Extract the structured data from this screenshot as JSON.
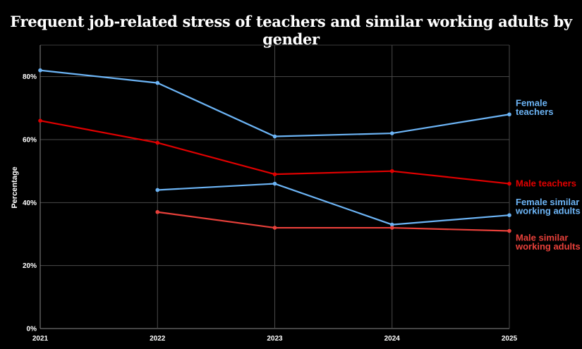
{
  "chart_data": {
    "type": "line",
    "title": "Frequent job-related stress of teachers and similar working adults by gender",
    "ylabel": "Percentage",
    "xlabel": "",
    "x": [
      2021,
      2022,
      2023,
      2024,
      2025
    ],
    "x_tick_labels": [
      "2021",
      "2022",
      "2023",
      "2024",
      "2025"
    ],
    "ylim": [
      0,
      90
    ],
    "y_ticks": [
      0,
      20,
      40,
      60,
      80
    ],
    "y_tick_labels": [
      "0%",
      "20%",
      "40%",
      "60%",
      "80%"
    ],
    "grid": true,
    "series": [
      {
        "name": "Female teachers",
        "label_lines": [
          "Female",
          "teachers"
        ],
        "color": "#6cb4f5",
        "values": [
          82,
          78,
          61,
          62,
          68
        ]
      },
      {
        "name": "Male teachers",
        "label_lines": [
          "Male teachers"
        ],
        "color": "#e00000",
        "values": [
          66,
          59,
          49,
          50,
          46
        ]
      },
      {
        "name": "Female similar working adults",
        "label_lines": [
          "Female similar",
          "working adults"
        ],
        "color": "#6cb4f5",
        "values": [
          null,
          44,
          46,
          33,
          36
        ]
      },
      {
        "name": "Male similar working adults",
        "label_lines": [
          "Male similar",
          "working adults"
        ],
        "color": "#e8403a",
        "values": [
          null,
          37,
          32,
          32,
          31
        ]
      }
    ]
  }
}
